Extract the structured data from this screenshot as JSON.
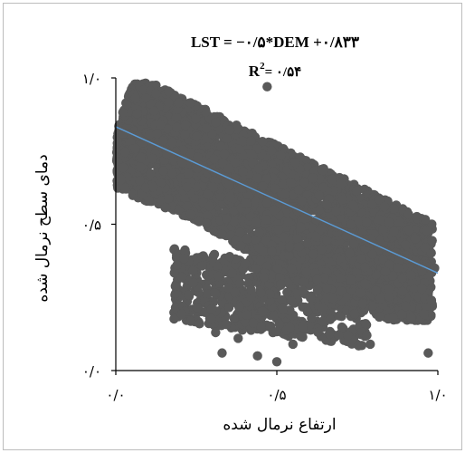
{
  "chart_data": {
    "type": "scatter",
    "title": "",
    "equation": {
      "prefix": "LST",
      "rest": " = −۰/۵*DEM +۰/۸۳۳",
      "r2_base": "R",
      "r2_exp": "2",
      "r2_value": "= ۰/۵۴"
    },
    "xlabel": "ارتفاع نرمال شده",
    "ylabel": "دمای سطح نرمال شده",
    "xlim": [
      0,
      1
    ],
    "ylim": [
      0,
      1
    ],
    "x_ticks": [
      {
        "value": 0,
        "label": "۰/۰"
      },
      {
        "value": 0.5,
        "label": "۰/۵"
      },
      {
        "value": 1,
        "label": "۱/۰"
      }
    ],
    "y_ticks": [
      {
        "value": 0,
        "label": "۰/۰"
      },
      {
        "value": 0.5,
        "label": "۰/۵"
      },
      {
        "value": 1,
        "label": "۱/۰"
      }
    ],
    "grid": false,
    "point_color": "#595959",
    "trendline": {
      "slope": -0.5,
      "intercept": 0.833,
      "r2": 0.54,
      "x_start": 0,
      "x_end": 1,
      "color": "#5b9bd5"
    },
    "point_cloud_description": "dense negative-correlation cloud: upper-left band near y 0.65-0.95 at low x, descending to y 0.2-0.45 near x 0.9-1.0, with sparse outliers below",
    "outliers": [
      {
        "x": 0.47,
        "y": 0.97
      },
      {
        "x": 0.19,
        "y": 0.36
      },
      {
        "x": 0.24,
        "y": 0.3
      },
      {
        "x": 0.26,
        "y": 0.16
      },
      {
        "x": 0.31,
        "y": 0.13
      },
      {
        "x": 0.38,
        "y": 0.11
      },
      {
        "x": 0.44,
        "y": 0.05
      },
      {
        "x": 0.5,
        "y": 0.03
      },
      {
        "x": 0.33,
        "y": 0.06
      },
      {
        "x": 0.55,
        "y": 0.09
      },
      {
        "x": 0.72,
        "y": 0.12
      },
      {
        "x": 0.79,
        "y": 0.09
      },
      {
        "x": 0.97,
        "y": 0.06
      },
      {
        "x": 0.93,
        "y": 0.45
      },
      {
        "x": 0.96,
        "y": 0.42
      },
      {
        "x": 0.99,
        "y": 0.35
      },
      {
        "x": 0.95,
        "y": 0.28
      },
      {
        "x": 0.9,
        "y": 0.22
      },
      {
        "x": 0.98,
        "y": 0.24
      }
    ]
  }
}
